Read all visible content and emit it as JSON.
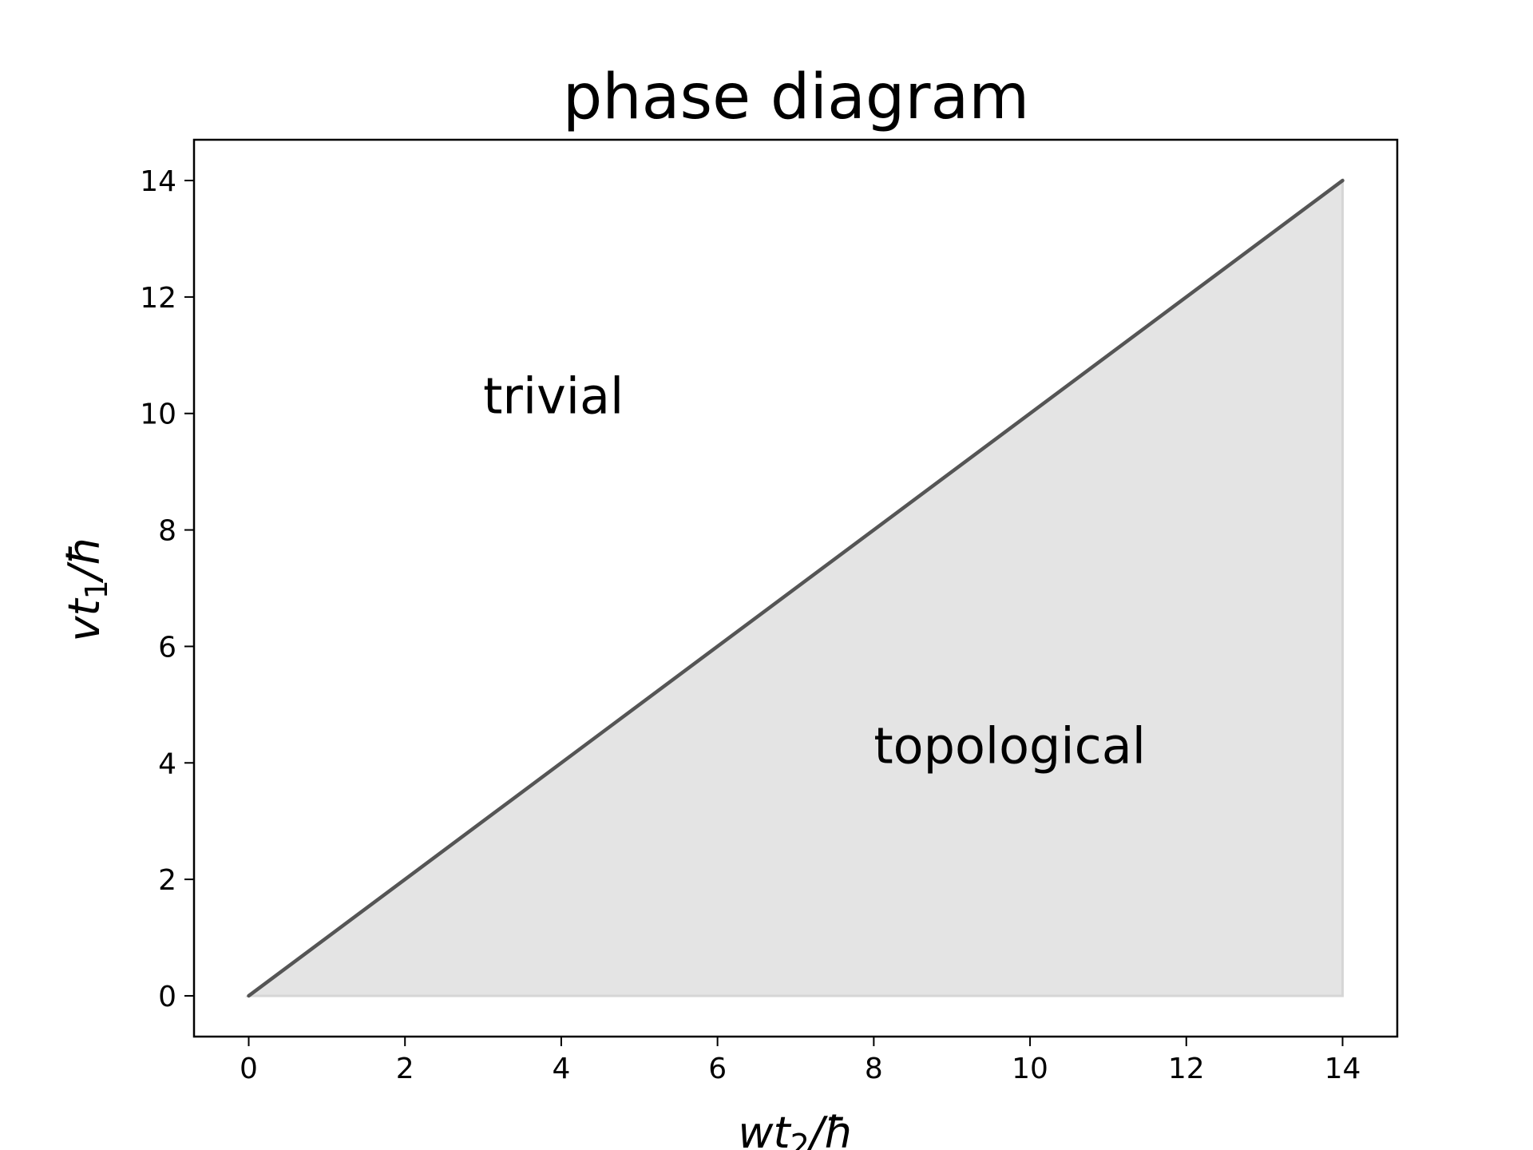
{
  "chart_data": {
    "type": "area",
    "title": "phase diagram",
    "xlabel": {
      "main": "wt",
      "sub": "2",
      "tail": "/ħ"
    },
    "ylabel": {
      "main": "vt",
      "sub": "1",
      "tail": "/ħ"
    },
    "xlim": [
      -0.7,
      14.7
    ],
    "ylim": [
      -0.7,
      14.7
    ],
    "xticks": [
      0,
      2,
      4,
      6,
      8,
      10,
      12,
      14
    ],
    "yticks": [
      0,
      2,
      4,
      6,
      8,
      10,
      12,
      14
    ],
    "grid": false,
    "boundary": {
      "x": [
        0,
        14
      ],
      "y": [
        0,
        14
      ],
      "color": "#555555"
    },
    "fill_region": {
      "x": [
        0,
        14,
        14
      ],
      "y": [
        0,
        0,
        14
      ],
      "color": "#e4e4e4"
    },
    "annotations": [
      {
        "text": "trivial",
        "x": 3,
        "y": 10
      },
      {
        "text": "topological",
        "x": 8,
        "y": 4
      }
    ]
  }
}
